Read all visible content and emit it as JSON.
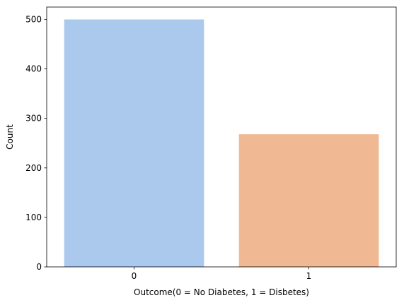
{
  "chart_data": {
    "type": "bar",
    "title": "",
    "xlabel": "Outcome(0 = No Diabetes, 1 = Disbetes)",
    "ylabel": "Count",
    "categories": [
      "0",
      "1"
    ],
    "values": [
      500,
      268
    ],
    "colors": [
      "#abc9ed",
      "#f1b993"
    ],
    "ylim": [
      0,
      525
    ],
    "yticks": [
      0,
      100,
      200,
      300,
      400,
      500
    ],
    "grid": false,
    "legend": "none"
  }
}
